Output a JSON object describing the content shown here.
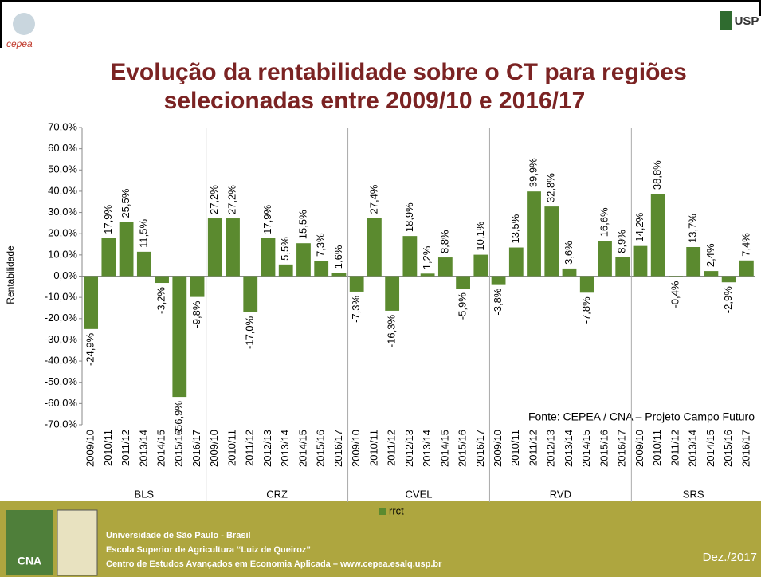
{
  "chart_data": {
    "type": "bar",
    "title": [
      "Evolução da rentabilidade sobre o CT para regiões",
      "selecionadas entre 2009/10 e 2016/17"
    ],
    "ylabel": "Rentabilidade",
    "annotation": "Fonte: CEPEA / CNA – Projeto Campo Futuro",
    "legend": "rrct",
    "color": "#5b8a2f",
    "ylim": [
      -70,
      70
    ],
    "yticks": [
      {
        "value": 70,
        "label": "70,0%"
      },
      {
        "value": 60,
        "label": "60,0%"
      },
      {
        "value": 50,
        "label": "50,0%"
      },
      {
        "value": 40,
        "label": "40,0%"
      },
      {
        "value": 30,
        "label": "30,0%"
      },
      {
        "value": 20,
        "label": "20,0%"
      },
      {
        "value": 10,
        "label": "10,0%"
      },
      {
        "value": 0,
        "label": "0,0%"
      },
      {
        "value": -10,
        "label": "-10,0%"
      },
      {
        "value": -20,
        "label": "-20,0%"
      },
      {
        "value": -30,
        "label": "-30,0%"
      },
      {
        "value": -40,
        "label": "-40,0%"
      },
      {
        "value": -50,
        "label": "-50,0%"
      },
      {
        "value": -60,
        "label": "-60,0%"
      },
      {
        "value": -70,
        "label": "-70,0%"
      }
    ],
    "groups": [
      {
        "name": "BLS",
        "categories": [
          "2009/10",
          "2010/11",
          "2011/12",
          "2013/14",
          "2014/15",
          "2015/16",
          "2016/17"
        ],
        "values": [
          -24.9,
          17.9,
          25.5,
          11.5,
          -3.2,
          -56.9,
          -9.8
        ],
        "value_labels": [
          "-24,9%",
          "17,9%",
          "25,5%",
          "11,5%",
          "-3,2%",
          "-56,9%",
          "-9,8%"
        ]
      },
      {
        "name": "CRZ",
        "categories": [
          "2009/10",
          "2010/11",
          "2011/12",
          "2012/13",
          "2013/14",
          "2014/15",
          "2015/16",
          "2016/17"
        ],
        "values": [
          27.2,
          27.2,
          -17.0,
          17.9,
          5.5,
          15.5,
          7.3,
          1.6
        ],
        "value_labels": [
          "27,2%",
          "27,2%",
          "-17,0%",
          "17,9%",
          "5,5%",
          "15,5%",
          "7,3%",
          "1,6%"
        ]
      },
      {
        "name": "CVEL",
        "categories": [
          "2009/10",
          "2010/11",
          "2011/12",
          "2012/13",
          "2013/14",
          "2014/15",
          "2015/16",
          "2016/17"
        ],
        "values": [
          -7.3,
          27.4,
          -16.3,
          18.9,
          1.2,
          8.8,
          -5.9,
          10.1
        ],
        "value_labels": [
          "-7,3%",
          "27,4%",
          "-16,3%",
          "18,9%",
          "1,2%",
          "8,8%",
          "-5,9%",
          "10,1%"
        ]
      },
      {
        "name": "RVD",
        "categories": [
          "2009/10",
          "2010/11",
          "2011/12",
          "2012/13",
          "2013/14",
          "2014/15",
          "2015/16",
          "2016/17"
        ],
        "values": [
          -3.8,
          13.5,
          39.9,
          32.8,
          3.6,
          -7.8,
          16.6,
          8.9
        ],
        "value_labels": [
          "-3,8%",
          "13,5%",
          "39,9%",
          "32,8%",
          "3,6%",
          "-7,8%",
          "16,6%",
          "8,9%"
        ]
      },
      {
        "name": "SRS",
        "categories": [
          "2009/10",
          "2010/11",
          "2011/12",
          "2013/14",
          "2014/15",
          "2015/16",
          "2016/17"
        ],
        "values": [
          14.2,
          38.8,
          -0.4,
          13.7,
          2.4,
          -2.9,
          7.4
        ],
        "value_labels": [
          "14,2%",
          "38,8%",
          "-0,4%",
          "13,7%",
          "2,4%",
          "-2,9%",
          "7,4%"
        ]
      }
    ]
  },
  "logos": {
    "cepea": "cepea",
    "usp": "USP",
    "cna": "CNA"
  },
  "footer": {
    "lines": [
      "Universidade de São Paulo - Brasil",
      "Escola Superior de Agricultura “Luiz de Queiroz”",
      "Centro de Estudos Avançados em Economia Aplicada – www.cepea.esalq.usp.br"
    ],
    "date": "Dez./2017"
  }
}
